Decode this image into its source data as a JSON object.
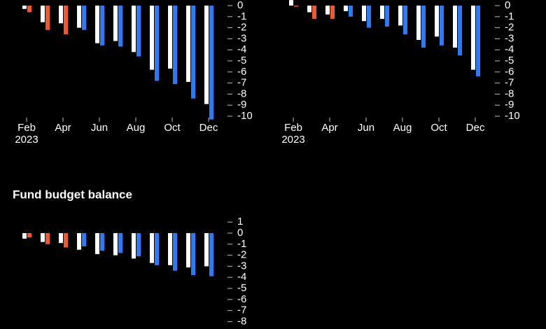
{
  "chart_data": [
    {
      "type": "bar",
      "categories": [
        "Feb",
        null,
        "Apr",
        null,
        "Jun",
        null,
        "Aug",
        null,
        "Oct",
        null,
        "Dec"
      ],
      "x_sublabel": "2023",
      "series": [
        {
          "color": "#ffffff",
          "values": [
            -0.3,
            -1.5,
            -1.6,
            -2.0,
            -3.4,
            -3.2,
            -4.2,
            -5.8,
            -5.7,
            -6.9,
            -8.9
          ]
        },
        {
          "colors": [
            "#ee5a2f",
            "#ee5a2f",
            "#ee5a2f",
            "#2b7bf6",
            "#2b7bf6",
            "#2b7bf6",
            "#2b7bf6",
            "#2b7bf6",
            "#2b7bf6",
            "#2b7bf6",
            "#2b7bf6"
          ],
          "values": [
            -0.6,
            -2.2,
            -2.6,
            -2.2,
            -3.6,
            -3.7,
            -4.6,
            -6.8,
            -7.1,
            -8.4,
            -10.3
          ]
        }
      ],
      "ylim": [
        -10.5,
        0.3
      ],
      "yticks": [
        0,
        -1,
        -2,
        -3,
        -4,
        -5,
        -6,
        -7,
        -8,
        -9,
        -10
      ]
    },
    {
      "type": "bar",
      "categories": [
        "Feb",
        null,
        "Apr",
        null,
        "Jun",
        null,
        "Aug",
        null,
        "Oct",
        null,
        "Dec"
      ],
      "x_sublabel": "2023",
      "series": [
        {
          "color": "#ffffff",
          "values": [
            0.5,
            -0.6,
            -0.8,
            -0.5,
            -1.4,
            -1.2,
            -1.8,
            -3.1,
            -2.8,
            -3.8,
            -5.8
          ]
        },
        {
          "colors": [
            "#ee5a2f",
            "#ee5a2f",
            "#ee5a2f",
            "#2b7bf6",
            "#2b7bf6",
            "#2b7bf6",
            "#2b7bf6",
            "#2b7bf6",
            "#2b7bf6",
            "#2b7bf6",
            "#2b7bf6"
          ],
          "values": [
            -0.1,
            -1.2,
            -1.2,
            -1.0,
            -2.0,
            -1.9,
            -2.6,
            -3.8,
            -3.6,
            -4.5,
            -6.4
          ]
        }
      ],
      "ylim": [
        -10.5,
        0.5
      ],
      "yticks": [
        0,
        -1,
        -2,
        -3,
        -4,
        -5,
        -6,
        -7,
        -8,
        -9,
        -10
      ]
    },
    {
      "type": "bar",
      "title": "Fund budget balance",
      "series": [
        {
          "color": "#ffffff",
          "values": [
            -0.5,
            -0.8,
            -0.9,
            -1.5,
            -1.9,
            -2.0,
            -2.3,
            -2.7,
            -2.9,
            -3.1,
            -3.0
          ]
        },
        {
          "colors": [
            "#ee5a2f",
            "#ee5a2f",
            "#ee5a2f",
            "#2b7bf6",
            "#2b7bf6",
            "#2b7bf6",
            "#2b7bf6",
            "#2b7bf6",
            "#2b7bf6",
            "#2b7bf6",
            "#2b7bf6"
          ],
          "values": [
            -0.4,
            -1.0,
            -1.3,
            -1.2,
            -1.6,
            -1.8,
            -2.1,
            -2.9,
            -3.4,
            -3.8,
            -3.9
          ]
        }
      ],
      "ylim": [
        -8.5,
        1.3
      ],
      "yticks": [
        1,
        0,
        -1,
        -2,
        -3,
        -4,
        -5,
        -6,
        -7,
        -8
      ]
    }
  ]
}
